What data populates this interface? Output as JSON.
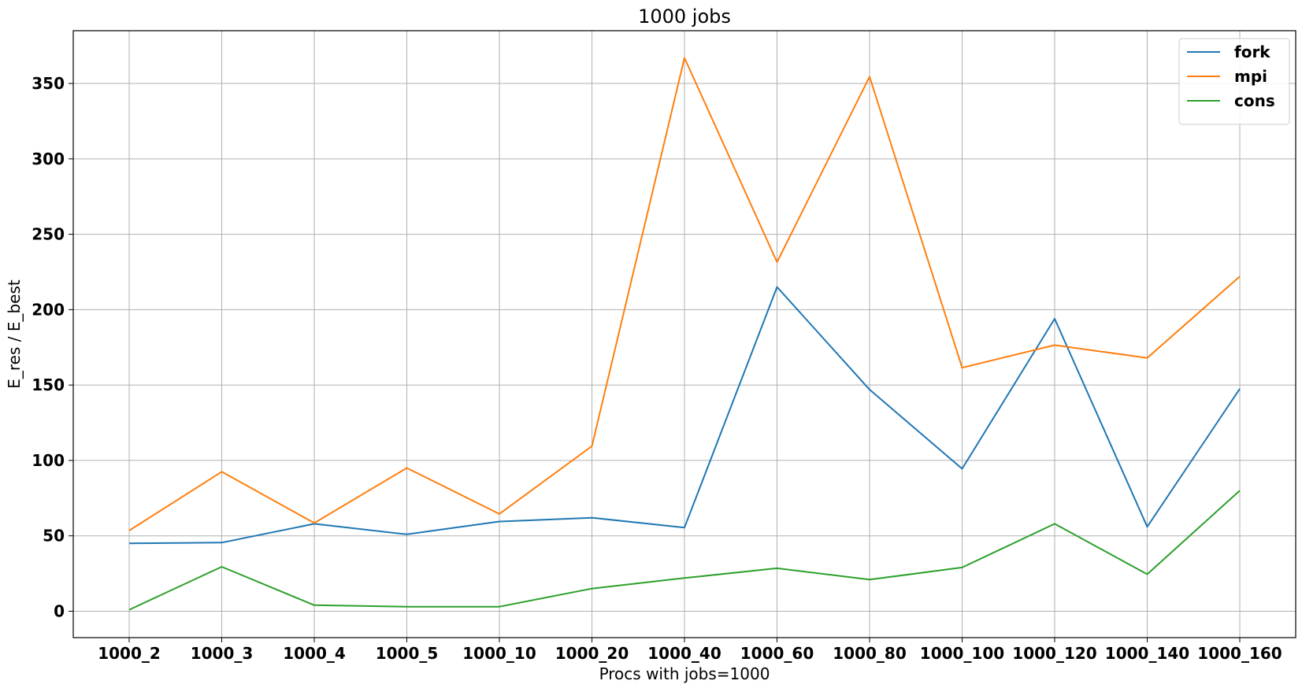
{
  "chart_data": {
    "type": "line",
    "title": "1000 jobs",
    "xlabel": "Procs with jobs=1000",
    "ylabel": "E_res / E_best",
    "categories": [
      "1000_2",
      "1000_3",
      "1000_4",
      "1000_5",
      "1000_10",
      "1000_20",
      "1000_40",
      "1000_60",
      "1000_80",
      "1000_100",
      "1000_120",
      "1000_140",
      "1000_160"
    ],
    "ylim": [
      -17.5,
      385
    ],
    "yticks": [
      0,
      50,
      100,
      150,
      200,
      250,
      300,
      350
    ],
    "grid": true,
    "legend_position": "top-right",
    "series": [
      {
        "name": "fork",
        "color": "#1f77b4",
        "values": [
          45,
          45.5,
          58,
          51,
          59.5,
          62,
          55.5,
          215,
          147,
          94.5,
          194,
          56,
          147.5
        ]
      },
      {
        "name": "mpi",
        "color": "#ff7f0e",
        "values": [
          53.5,
          92.5,
          58.5,
          95,
          64.5,
          109.5,
          367,
          231.5,
          354.5,
          161.5,
          176.5,
          168,
          222
        ]
      },
      {
        "name": "cons",
        "color": "#2ca02c",
        "values": [
          1,
          29.5,
          4,
          3,
          3,
          15,
          22,
          28.5,
          21,
          29,
          58,
          24.5,
          80
        ]
      }
    ]
  }
}
